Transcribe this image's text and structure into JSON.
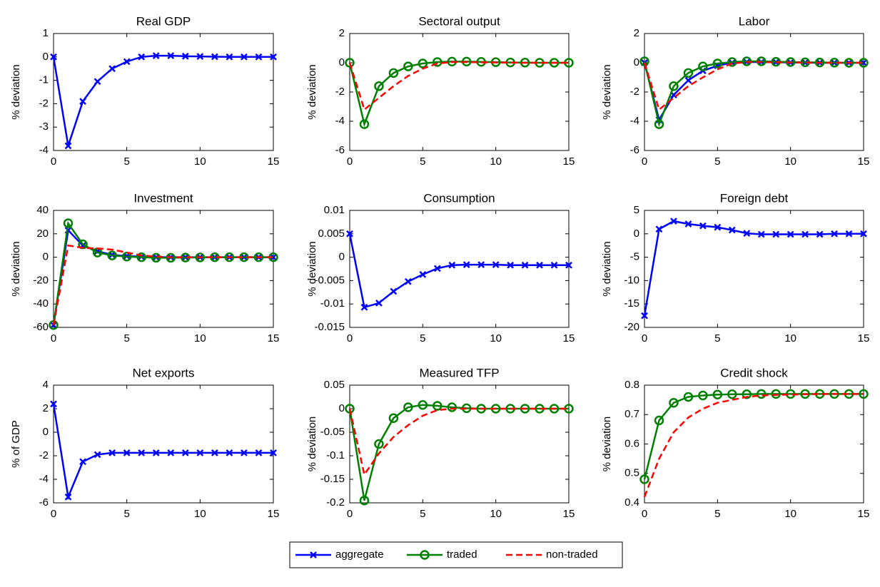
{
  "chart_data": [
    {
      "type": "line",
      "title": "Real GDP",
      "ylabel": "% deviation",
      "x": [
        0,
        1,
        2,
        3,
        4,
        5,
        6,
        7,
        8,
        9,
        10,
        11,
        12,
        13,
        14,
        15
      ],
      "xlim": [
        0,
        15
      ],
      "xticks": [
        0,
        5,
        10,
        15
      ],
      "ylim": [
        -4,
        1
      ],
      "yticks": [
        -4,
        -3,
        -2,
        -1,
        0,
        1
      ],
      "series": [
        {
          "name": "aggregate",
          "color": "#0000ff",
          "marker": "x",
          "linestyle": "solid",
          "values": [
            0,
            -3.8,
            -1.9,
            -1.05,
            -0.5,
            -0.2,
            0,
            0.05,
            0.05,
            0.03,
            0.02,
            0.01,
            0,
            0,
            0,
            0
          ]
        }
      ]
    },
    {
      "type": "line",
      "title": "Sectoral output",
      "ylabel": "% deviation",
      "x": [
        0,
        1,
        2,
        3,
        4,
        5,
        6,
        7,
        8,
        9,
        10,
        11,
        12,
        13,
        14,
        15
      ],
      "xlim": [
        0,
        15
      ],
      "xticks": [
        0,
        5,
        10,
        15
      ],
      "ylim": [
        -6,
        2
      ],
      "yticks": [
        -6,
        -4,
        -2,
        0,
        2
      ],
      "series": [
        {
          "name": "traded",
          "color": "#008000",
          "marker": "o",
          "linestyle": "solid",
          "values": [
            0,
            -4.2,
            -1.6,
            -0.7,
            -0.25,
            -0.05,
            0.05,
            0.08,
            0.08,
            0.06,
            0.04,
            0.02,
            0.01,
            0,
            0,
            0
          ]
        },
        {
          "name": "non-traded",
          "color": "#ff0000",
          "marker": "none",
          "linestyle": "dashed",
          "values": [
            0,
            -3.2,
            -2.4,
            -1.6,
            -0.9,
            -0.4,
            -0.05,
            0.05,
            0.05,
            0.03,
            0.02,
            0.01,
            0,
            0,
            0,
            0
          ]
        }
      ]
    },
    {
      "type": "line",
      "title": "Labor",
      "ylabel": "% deviation",
      "x": [
        0,
        1,
        2,
        3,
        4,
        5,
        6,
        7,
        8,
        9,
        10,
        11,
        12,
        13,
        14,
        15
      ],
      "xlim": [
        0,
        15
      ],
      "xticks": [
        0,
        5,
        10,
        15
      ],
      "ylim": [
        -6,
        2
      ],
      "yticks": [
        -6,
        -4,
        -2,
        0,
        2
      ],
      "series": [
        {
          "name": "aggregate",
          "color": "#0000ff",
          "marker": "x",
          "linestyle": "solid",
          "values": [
            0,
            -3.9,
            -2.2,
            -1.2,
            -0.55,
            -0.2,
            0,
            0.05,
            0.05,
            0.04,
            0.02,
            0.01,
            0,
            0,
            0,
            0
          ]
        },
        {
          "name": "traded",
          "color": "#008000",
          "marker": "o",
          "linestyle": "solid",
          "values": [
            0.1,
            -4.2,
            -1.6,
            -0.7,
            -0.25,
            -0.05,
            0.05,
            0.1,
            0.1,
            0.07,
            0.05,
            0.03,
            0.02,
            0.01,
            0,
            0
          ]
        },
        {
          "name": "non-traded",
          "color": "#ff0000",
          "marker": "none",
          "linestyle": "dashed",
          "values": [
            0,
            -3.2,
            -2.4,
            -1.6,
            -1,
            -0.45,
            -0.05,
            0.05,
            0.05,
            0.03,
            0.02,
            0.01,
            0,
            0,
            0,
            0
          ]
        }
      ]
    },
    {
      "type": "line",
      "title": "Investment",
      "ylabel": "% deviation",
      "x": [
        0,
        1,
        2,
        3,
        4,
        5,
        6,
        7,
        8,
        9,
        10,
        11,
        12,
        13,
        14,
        15
      ],
      "xlim": [
        0,
        15
      ],
      "xticks": [
        0,
        5,
        10,
        15
      ],
      "ylim": [
        -60,
        40
      ],
      "yticks": [
        -60,
        -40,
        -20,
        0,
        20,
        40
      ],
      "series": [
        {
          "name": "aggregate",
          "color": "#0000ff",
          "marker": "x",
          "linestyle": "solid",
          "values": [
            -58,
            23,
            10,
            5,
            2,
            1,
            0.5,
            0,
            0,
            0,
            0,
            0,
            0,
            0,
            0,
            0
          ]
        },
        {
          "name": "traded",
          "color": "#008000",
          "marker": "o",
          "linestyle": "solid",
          "values": [
            -58,
            29,
            11,
            4,
            1.5,
            0.5,
            0,
            -0.5,
            -0.5,
            -0.3,
            -0.2,
            0,
            0,
            0,
            0,
            0
          ]
        },
        {
          "name": "non-traded",
          "color": "#ff0000",
          "marker": "none",
          "linestyle": "dashed",
          "values": [
            -58,
            10,
            8,
            7.5,
            6.5,
            4,
            1.5,
            0.5,
            0,
            0,
            0,
            0,
            0,
            0,
            0,
            0
          ]
        }
      ]
    },
    {
      "type": "line",
      "title": "Consumption",
      "ylabel": "% deviation",
      "x": [
        0,
        1,
        2,
        3,
        4,
        5,
        6,
        7,
        8,
        9,
        10,
        11,
        12,
        13,
        14,
        15
      ],
      "xlim": [
        0,
        15
      ],
      "xticks": [
        0,
        5,
        10,
        15
      ],
      "ylim": [
        -0.015,
        0.01
      ],
      "yticks": [
        -0.015,
        -0.01,
        -0.005,
        0,
        0.005,
        0.01
      ],
      "series": [
        {
          "name": "aggregate",
          "color": "#0000ff",
          "marker": "x",
          "linestyle": "solid",
          "values": [
            0.005,
            -0.0107,
            -0.0098,
            -0.0073,
            -0.0052,
            -0.0037,
            -0.0024,
            -0.0017,
            -0.0016,
            -0.0016,
            -0.0016,
            -0.0017,
            -0.0017,
            -0.0017,
            -0.0017,
            -0.0017
          ]
        }
      ]
    },
    {
      "type": "line",
      "title": "Foreign debt",
      "ylabel": "% deviation",
      "x": [
        0,
        1,
        2,
        3,
        4,
        5,
        6,
        7,
        8,
        9,
        10,
        11,
        12,
        13,
        14,
        15
      ],
      "xlim": [
        0,
        15
      ],
      "xticks": [
        0,
        5,
        10,
        15
      ],
      "ylim": [
        -20,
        5
      ],
      "yticks": [
        -20,
        -15,
        -10,
        -5,
        0,
        5
      ],
      "series": [
        {
          "name": "aggregate",
          "color": "#0000ff",
          "marker": "x",
          "linestyle": "solid",
          "values": [
            -17.5,
            1,
            2.7,
            2.1,
            1.7,
            1.4,
            0.8,
            0.1,
            -0.1,
            -0.1,
            -0.1,
            -0.1,
            -0.1,
            0,
            0,
            0
          ]
        }
      ]
    },
    {
      "type": "line",
      "title": "Net exports",
      "ylabel": "% of GDP",
      "x": [
        0,
        1,
        2,
        3,
        4,
        5,
        6,
        7,
        8,
        9,
        10,
        11,
        12,
        13,
        14,
        15
      ],
      "xlim": [
        0,
        15
      ],
      "xticks": [
        0,
        5,
        10,
        15
      ],
      "ylim": [
        -6,
        4
      ],
      "yticks": [
        -6,
        -4,
        -2,
        0,
        2,
        4
      ],
      "series": [
        {
          "name": "aggregate",
          "color": "#0000ff",
          "marker": "x",
          "linestyle": "solid",
          "values": [
            2.4,
            -5.5,
            -2.5,
            -1.9,
            -1.75,
            -1.75,
            -1.75,
            -1.75,
            -1.75,
            -1.75,
            -1.75,
            -1.75,
            -1.75,
            -1.75,
            -1.75,
            -1.75
          ]
        }
      ]
    },
    {
      "type": "line",
      "title": "Measured TFP",
      "ylabel": "% deviation",
      "x": [
        0,
        1,
        2,
        3,
        4,
        5,
        6,
        7,
        8,
        9,
        10,
        11,
        12,
        13,
        14,
        15
      ],
      "xlim": [
        0,
        15
      ],
      "xticks": [
        0,
        5,
        10,
        15
      ],
      "ylim": [
        -0.2,
        0.05
      ],
      "yticks": [
        -0.2,
        -0.15,
        -0.1,
        -0.05,
        0,
        0.05
      ],
      "series": [
        {
          "name": "traded",
          "color": "#008000",
          "marker": "o",
          "linestyle": "solid",
          "values": [
            0,
            -0.195,
            -0.075,
            -0.02,
            0.003,
            0.008,
            0.006,
            0.003,
            0.001,
            0,
            0,
            0,
            0,
            0,
            0,
            0
          ]
        },
        {
          "name": "non-traded",
          "color": "#ff0000",
          "marker": "none",
          "linestyle": "dashed",
          "values": [
            0,
            -0.14,
            -0.095,
            -0.06,
            -0.035,
            -0.015,
            -0.003,
            0,
            0,
            0,
            0,
            0,
            0,
            0,
            0,
            0
          ]
        }
      ]
    },
    {
      "type": "line",
      "title": "Credit shock",
      "ylabel": "% deviation",
      "x": [
        0,
        1,
        2,
        3,
        4,
        5,
        6,
        7,
        8,
        9,
        10,
        11,
        12,
        13,
        14,
        15
      ],
      "xlim": [
        0,
        15
      ],
      "xticks": [
        0,
        5,
        10,
        15
      ],
      "ylim": [
        0.4,
        0.8
      ],
      "yticks": [
        0.4,
        0.5,
        0.6,
        0.7,
        0.8
      ],
      "series": [
        {
          "name": "traded",
          "color": "#008000",
          "marker": "o",
          "linestyle": "solid",
          "values": [
            0.48,
            0.68,
            0.74,
            0.76,
            0.765,
            0.768,
            0.769,
            0.769,
            0.77,
            0.77,
            0.77,
            0.77,
            0.77,
            0.77,
            0.77,
            0.77
          ]
        },
        {
          "name": "non-traded",
          "color": "#ff0000",
          "marker": "none",
          "linestyle": "dashed",
          "values": [
            0.42,
            0.55,
            0.64,
            0.69,
            0.72,
            0.74,
            0.75,
            0.76,
            0.765,
            0.767,
            0.768,
            0.769,
            0.77,
            0.77,
            0.77,
            0.77
          ]
        }
      ]
    }
  ]
}
